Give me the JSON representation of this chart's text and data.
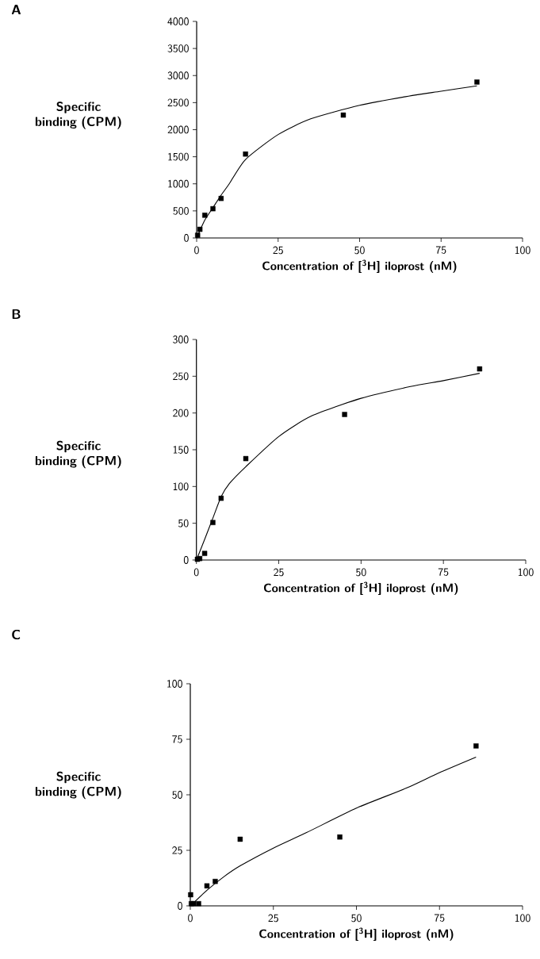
{
  "chart_data": [
    {
      "type": "scatter",
      "annotations": [
        "A"
      ],
      "xlabel": "Concentration of [$^{3}$H] iloprost (nM)",
      "ylabel": "Specific binding (CPM)",
      "xlim": [
        0,
        100
      ],
      "xticks": [
        0,
        25,
        50,
        75,
        100
      ],
      "ylim": [
        0,
        4000
      ],
      "yticks": [
        0,
        500,
        1000,
        1500,
        2000,
        2500,
        3000,
        3500,
        4000
      ],
      "marker": "square",
      "series": [
        {
          "color": "#000000",
          "x": [
            0.3,
            1,
            2.5,
            5,
            7.5,
            15,
            45,
            86
          ],
          "values": [
            50,
            160,
            420,
            540,
            730,
            1550,
            2270,
            2880
          ]
        },
        {
          "type": "line",
          "marker": "none",
          "line_style": "solid",
          "color": "#000000",
          "x": [
            0,
            2.5,
            5,
            7.5,
            10,
            15,
            25,
            35,
            50,
            65,
            75,
            86
          ],
          "values": [
            0,
            330,
            560,
            790,
            1000,
            1450,
            1910,
            2200,
            2450,
            2620,
            2710,
            2810
          ]
        }
      ]
    },
    {
      "type": "scatter",
      "annotations": [
        "B"
      ],
      "xlabel": "Concentration of [$^{3}$H] iloprost (nM)",
      "ylabel": "Specific binding (CPM)",
      "xlim": [
        0,
        100
      ],
      "xticks": [
        0,
        25,
        50,
        75,
        100
      ],
      "ylim": [
        0,
        300
      ],
      "yticks": [
        0,
        50,
        100,
        150,
        200,
        250,
        300
      ],
      "marker": "square",
      "series": [
        {
          "color": "#000000",
          "x": [
            0.3,
            1,
            2.5,
            5,
            7.5,
            15,
            45,
            86
          ],
          "values": [
            1,
            2,
            9,
            51,
            84,
            138,
            198,
            260
          ]
        },
        {
          "type": "line",
          "marker": "none",
          "line_style": "solid",
          "color": "#000000",
          "x": [
            0,
            2.5,
            5,
            7.5,
            10,
            15,
            25,
            35,
            50,
            65,
            75,
            86
          ],
          "values": [
            0,
            28,
            57,
            86,
            104,
            127,
            168,
            196,
            220,
            236,
            244,
            254
          ]
        }
      ]
    },
    {
      "type": "scatter",
      "annotations": [
        "C"
      ],
      "xlabel": "Concentration of [$^{3}$H] iloprost (nM)",
      "ylabel": "Specific binding (CPM)",
      "xlim": [
        0,
        100
      ],
      "xticks": [
        0,
        25,
        50,
        75,
        100
      ],
      "ylim": [
        0,
        100
      ],
      "yticks": [
        0,
        25,
        50,
        75,
        100
      ],
      "marker": "square",
      "series": [
        {
          "color": "#000000",
          "x": [
            0.1,
            0.3,
            1,
            2.5,
            5,
            7.5,
            15,
            45,
            86
          ],
          "values": [
            5,
            1,
            1,
            1,
            9,
            11,
            30,
            31,
            72
          ]
        },
        {
          "type": "line",
          "marker": "none",
          "line_style": "solid",
          "color": "#000000",
          "x": [
            0,
            5,
            10,
            15,
            25,
            35,
            50,
            65,
            75,
            86
          ],
          "values": [
            0,
            7,
            13,
            18,
            26,
            33,
            44,
            53,
            60,
            67
          ]
        }
      ]
    }
  ]
}
